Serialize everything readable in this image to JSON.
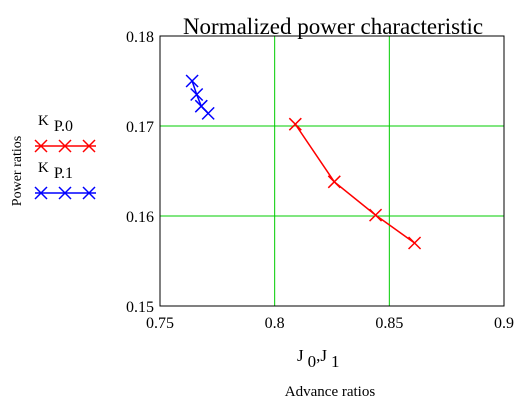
{
  "chart_data": {
    "type": "line",
    "title": "Normalized power characteristic",
    "xlabel_symbol": {
      "base": "J",
      "sub0": "0",
      "sep": ",",
      "base2": "J",
      "sub1": "1"
    },
    "xlabel": "Advance ratios",
    "ylabel": "Power ratios",
    "xlim": [
      0.75,
      0.9
    ],
    "ylim": [
      0.15,
      0.18
    ],
    "xticks": [
      0.75,
      0.8,
      0.85,
      0.9
    ],
    "yticks": [
      0.15,
      0.16,
      0.17,
      0.18
    ],
    "xtick_labels": [
      "0.75",
      "0.8",
      "0.85",
      "0.9"
    ],
    "ytick_labels": [
      "0.15",
      "0.16",
      "0.17",
      "0.18"
    ],
    "grid": true,
    "grid_color": "#00cc00",
    "legend_position": "left",
    "series": [
      {
        "name": "K P.0",
        "name_base": "K",
        "name_sub": "P.0",
        "color": "#ff0000",
        "marker": "x",
        "x": [
          0.809,
          0.826,
          0.844,
          0.861
        ],
        "y": [
          0.1702,
          0.1638,
          0.1601,
          0.157
        ]
      },
      {
        "name": "K P.1",
        "name_base": "K",
        "name_sub": "P.1",
        "color": "#0000ff",
        "marker": "x",
        "x": [
          0.764,
          0.766,
          0.768,
          0.771
        ],
        "y": [
          0.175,
          0.1735,
          0.1722,
          0.1714
        ]
      }
    ]
  }
}
